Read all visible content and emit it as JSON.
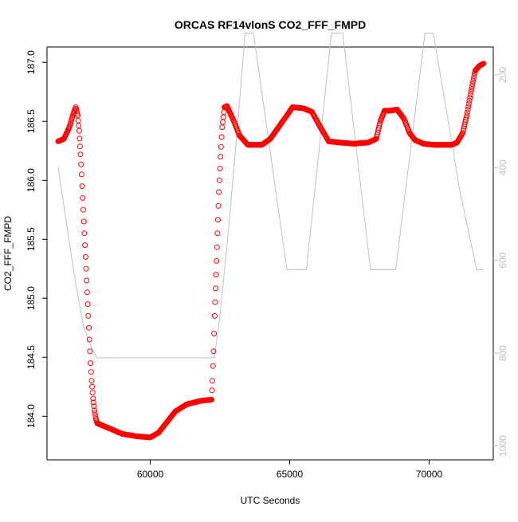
{
  "chart_data": {
    "type": "scatter",
    "title": "ORCAS RF14vlonS CO2_FFF_FMPD",
    "xlabel": "UTC Seconds",
    "ylabel": "CO2_FFF_FMPD",
    "xlim": [
      56300,
      72300
    ],
    "ylim": [
      183.63,
      187.13
    ],
    "x_ticks": [
      60000,
      65000,
      70000
    ],
    "y_ticks": [
      184.0,
      184.5,
      185.0,
      185.5,
      186.0,
      186.5,
      187.0
    ],
    "y_tick_labels": [
      "184.0",
      "184.5",
      "185.0",
      "185.5",
      "186.0",
      "186.5",
      "187.0"
    ],
    "y2_lim": [
      1030,
      140
    ],
    "y2_ticks": [
      200,
      400,
      600,
      800,
      1000
    ],
    "y2_tick_labels": [
      "200",
      "400",
      "600",
      "800",
      "1000"
    ],
    "grid": false,
    "colors": {
      "series": "#ff0000",
      "secondary": "#bebebe",
      "axis": "#000000",
      "secondary_axis": "#bebebe"
    },
    "series": [
      {
        "marker": "open-circle",
        "axis": "left",
        "points": [
          [
            56700,
            186.33
          ],
          [
            56900,
            186.35
          ],
          [
            57100,
            186.45
          ],
          [
            57250,
            186.57
          ],
          [
            57330,
            186.62
          ],
          [
            57400,
            186.55
          ],
          [
            57450,
            186.42
          ],
          [
            57500,
            186.22
          ],
          [
            57540,
            186.05
          ],
          [
            57580,
            185.85
          ],
          [
            57620,
            185.65
          ],
          [
            57660,
            185.45
          ],
          [
            57700,
            185.25
          ],
          [
            57740,
            185.05
          ],
          [
            57780,
            184.85
          ],
          [
            57820,
            184.65
          ],
          [
            57860,
            184.45
          ],
          [
            57900,
            184.3
          ],
          [
            57950,
            184.15
          ],
          [
            58000,
            184.05
          ],
          [
            58050,
            183.98
          ],
          [
            58100,
            183.94
          ],
          [
            58300,
            183.92
          ],
          [
            58600,
            183.89
          ],
          [
            59000,
            183.85
          ],
          [
            59500,
            183.83
          ],
          [
            60000,
            183.82
          ],
          [
            60300,
            183.86
          ],
          [
            60600,
            183.95
          ],
          [
            60900,
            184.04
          ],
          [
            61300,
            184.1
          ],
          [
            61800,
            184.13
          ],
          [
            62200,
            184.14
          ],
          [
            62230,
            184.3
          ],
          [
            62270,
            184.55
          ],
          [
            62310,
            184.85
          ],
          [
            62360,
            185.2
          ],
          [
            62410,
            185.55
          ],
          [
            62460,
            185.9
          ],
          [
            62520,
            186.2
          ],
          [
            62580,
            186.45
          ],
          [
            62660,
            186.62
          ],
          [
            62750,
            186.63
          ],
          [
            63000,
            186.5
          ],
          [
            63200,
            186.38
          ],
          [
            63500,
            186.3
          ],
          [
            64000,
            186.3
          ],
          [
            64300,
            186.35
          ],
          [
            64600,
            186.45
          ],
          [
            64900,
            186.55
          ],
          [
            65100,
            186.62
          ],
          [
            65500,
            186.61
          ],
          [
            65800,
            186.58
          ],
          [
            66100,
            186.45
          ],
          [
            66400,
            186.33
          ],
          [
            66800,
            186.32
          ],
          [
            67300,
            186.31
          ],
          [
            67800,
            186.32
          ],
          [
            68100,
            186.35
          ],
          [
            68250,
            186.5
          ],
          [
            68400,
            186.59
          ],
          [
            68600,
            186.59
          ],
          [
            68850,
            186.6
          ],
          [
            69100,
            186.52
          ],
          [
            69300,
            186.4
          ],
          [
            69500,
            186.34
          ],
          [
            69800,
            186.31
          ],
          [
            70200,
            186.3
          ],
          [
            70500,
            186.3
          ],
          [
            70800,
            186.3
          ],
          [
            71000,
            186.32
          ],
          [
            71200,
            186.4
          ],
          [
            71350,
            186.55
          ],
          [
            71500,
            186.75
          ],
          [
            71650,
            186.93
          ],
          [
            71800,
            186.97
          ],
          [
            71950,
            186.99
          ]
        ]
      },
      {
        "line": "solid",
        "axis": "right",
        "points": [
          [
            56700,
            400
          ],
          [
            57000,
            520
          ],
          [
            57300,
            640
          ],
          [
            57600,
            740
          ],
          [
            57900,
            790
          ],
          [
            58100,
            810
          ],
          [
            58400,
            810
          ],
          [
            62300,
            810
          ],
          [
            62500,
            720
          ],
          [
            62800,
            540
          ],
          [
            63100,
            330
          ],
          [
            63350,
            150
          ],
          [
            63400,
            110
          ],
          [
            63700,
            110
          ],
          [
            64900,
            620
          ],
          [
            65600,
            620
          ],
          [
            66500,
            110
          ],
          [
            66900,
            110
          ],
          [
            67900,
            620
          ],
          [
            68800,
            620
          ],
          [
            69850,
            110
          ],
          [
            70150,
            110
          ],
          [
            71100,
            450
          ],
          [
            71700,
            620
          ],
          [
            71950,
            620
          ]
        ]
      }
    ]
  }
}
